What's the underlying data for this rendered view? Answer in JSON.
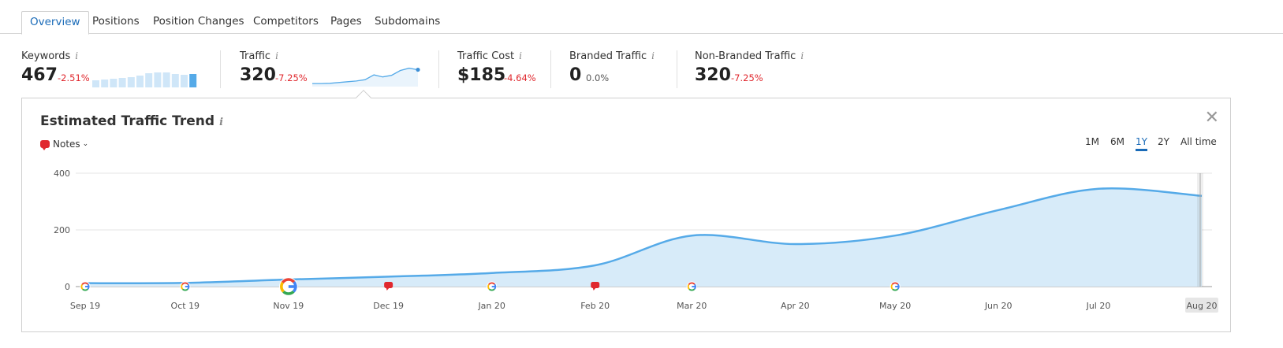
{
  "tabs": [
    {
      "label": "Overview",
      "active": true
    },
    {
      "label": "Positions"
    },
    {
      "label": "Position Changes"
    },
    {
      "label": "Competitors"
    },
    {
      "label": "Pages"
    },
    {
      "label": "Subdomains"
    }
  ],
  "metrics": [
    {
      "label": "Keywords",
      "value": "467",
      "delta": "-2.51%"
    },
    {
      "label": "Traffic",
      "value": "320",
      "delta": "-7.25%"
    },
    {
      "label": "Traffic Cost",
      "value": "$185",
      "delta": "-4.64%"
    },
    {
      "label": "Branded Traffic",
      "value": "0",
      "delta": "0.0%"
    },
    {
      "label": "Non-Branded Traffic",
      "value": "320",
      "delta": "-7.25%"
    }
  ],
  "info_glyph": "i",
  "colors": {
    "accent": "#1a6bb8",
    "negative": "#e0282e",
    "line": "#55aae8",
    "fill": "#d7ebf9",
    "spark_bar": "#cfe6f8",
    "spark_bar_last": "#55aae8"
  },
  "keywords_sparkline": [
    0.45,
    0.5,
    0.55,
    0.6,
    0.65,
    0.75,
    0.9,
    0.95,
    0.95,
    0.85,
    0.8,
    0.85
  ],
  "traffic_sparkline": [
    12,
    12,
    13,
    16,
    19,
    22,
    27,
    46,
    38,
    44,
    63,
    72,
    66
  ],
  "panel": {
    "title": "Estimated Traffic Trend",
    "notes_label": "Notes",
    "notes_chevron": "⌄",
    "close_glyph": "✕",
    "ranges": [
      {
        "label": "1M"
      },
      {
        "label": "6M"
      },
      {
        "label": "1Y",
        "active": true
      },
      {
        "label": "2Y"
      },
      {
        "label": "All time"
      }
    ]
  },
  "chart_data": {
    "type": "area",
    "title": "Estimated Traffic Trend",
    "xlabel": "",
    "ylabel": "",
    "ylim": [
      0,
      400
    ],
    "yticks": [
      0,
      200,
      400
    ],
    "grid": true,
    "x": [
      "2019-09-01",
      "2019-10-01",
      "2019-11-01",
      "2019-12-01",
      "2020-01-01",
      "2020-02-01",
      "2020-03-01",
      "2020-04-01",
      "2020-05-01",
      "2020-06-01",
      "2020-07-01",
      "2020-08-01"
    ],
    "xtick_labels": [
      "Sep 19",
      "Oct 19",
      "Nov 19",
      "Dec 19",
      "Jan 20",
      "Feb 20",
      "Mar 20",
      "Apr 20",
      "May 20",
      "Jun 20",
      "Jul 20",
      "Aug 20"
    ],
    "series": [
      {
        "values": [
          12,
          13,
          25,
          35,
          48,
          75,
          180,
          150,
          180,
          270,
          345,
          320
        ]
      }
    ],
    "markers": [
      {
        "x": "2019-09-01",
        "kind": "google"
      },
      {
        "x": "2019-10-01",
        "kind": "google"
      },
      {
        "x": "2019-11-01",
        "kind": "google-large"
      },
      {
        "x": "2019-12-01",
        "kind": "note"
      },
      {
        "x": "2020-01-01",
        "kind": "google"
      },
      {
        "x": "2020-02-01",
        "kind": "note"
      },
      {
        "x": "2020-03-01",
        "kind": "google"
      },
      {
        "x": "2020-05-01",
        "kind": "google"
      }
    ],
    "highlighted_tick": "Aug 20"
  }
}
